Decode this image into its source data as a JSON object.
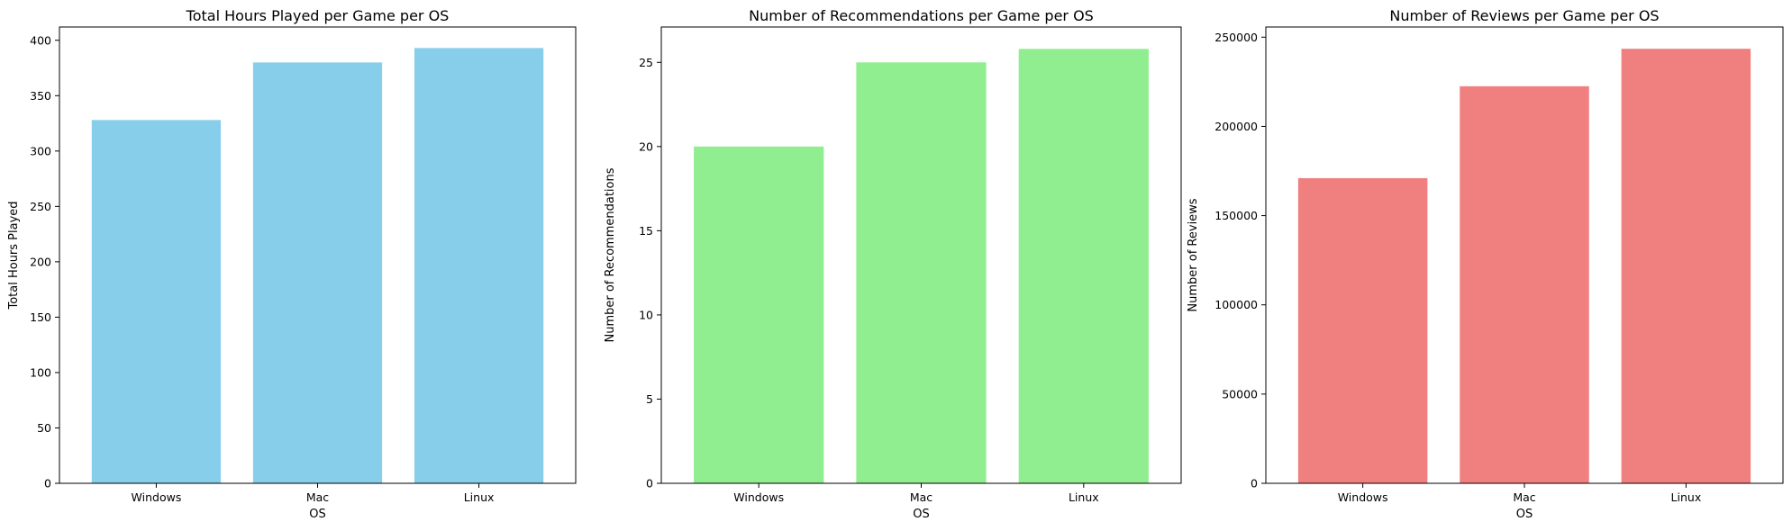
{
  "chart_data": [
    {
      "type": "bar",
      "title": "Total Hours Played per Game per OS",
      "xlabel": "OS",
      "ylabel": "Total Hours Played",
      "categories": [
        "Windows",
        "Mac",
        "Linux"
      ],
      "values": [
        328,
        380,
        393
      ],
      "ylim": [
        0,
        412
      ],
      "yticks": [
        0,
        50,
        100,
        150,
        200,
        250,
        300,
        350,
        400
      ],
      "color": "#87ceeb",
      "grid": false
    },
    {
      "type": "bar",
      "title": "Number of Recommendations per Game per OS",
      "xlabel": "OS",
      "ylabel": "Number of Recommendations",
      "categories": [
        "Windows",
        "Mac",
        "Linux"
      ],
      "values": [
        20.0,
        25.0,
        25.8
      ],
      "ylim": [
        0,
        27.1
      ],
      "yticks": [
        0,
        5,
        10,
        15,
        20,
        25
      ],
      "color": "#90ee90",
      "grid": false
    },
    {
      "type": "bar",
      "title": "Number of Reviews per Game per OS",
      "xlabel": "OS",
      "ylabel": "Number of Reviews",
      "categories": [
        "Windows",
        "Mac",
        "Linux"
      ],
      "values": [
        171000,
        222500,
        243500
      ],
      "ylim": [
        0,
        255700
      ],
      "yticks": [
        0,
        50000,
        100000,
        150000,
        200000,
        250000
      ],
      "color": "#f08080",
      "grid": false
    }
  ]
}
